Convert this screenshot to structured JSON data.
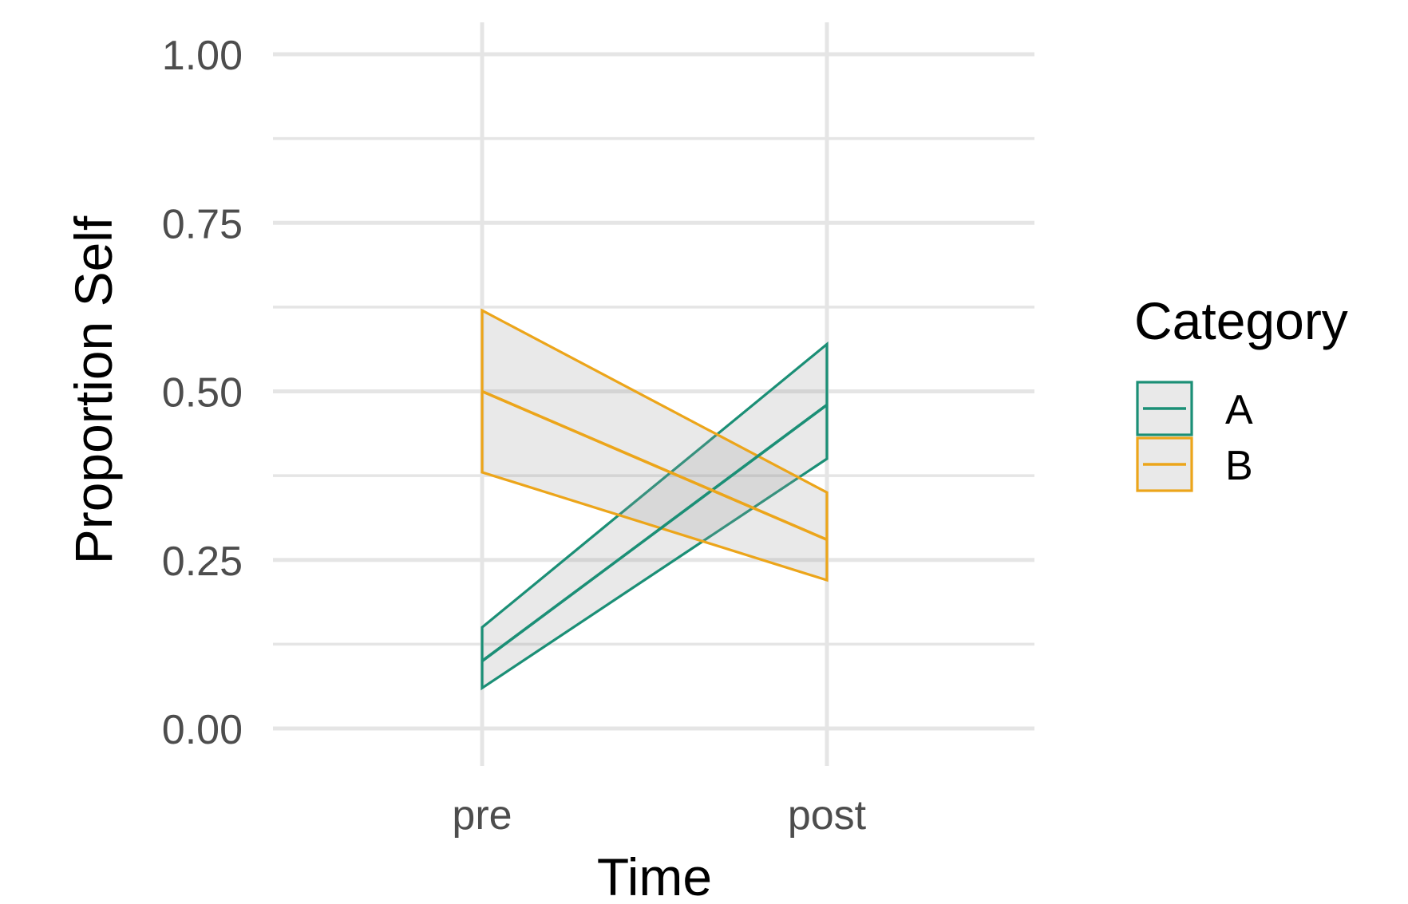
{
  "chart_data": {
    "type": "line",
    "title": "",
    "xlabel": "Time",
    "ylabel": "Proportion Self",
    "categories": [
      "pre",
      "post"
    ],
    "ylim": [
      0,
      1
    ],
    "y_ticks": [
      "0.00",
      "0.25",
      "0.50",
      "0.75",
      "1.00"
    ],
    "grid": true,
    "legend": {
      "title": "Category",
      "placement": "right"
    },
    "series": [
      {
        "name": "A",
        "color": "#1b8f76",
        "values": [
          0.1,
          0.48
        ],
        "lower": [
          0.06,
          0.4
        ],
        "upper": [
          0.15,
          0.57
        ]
      },
      {
        "name": "B",
        "color": "#eca51a",
        "values": [
          0.5,
          0.28
        ],
        "lower": [
          0.38,
          0.22
        ],
        "upper": [
          0.62,
          0.35
        ]
      }
    ]
  }
}
